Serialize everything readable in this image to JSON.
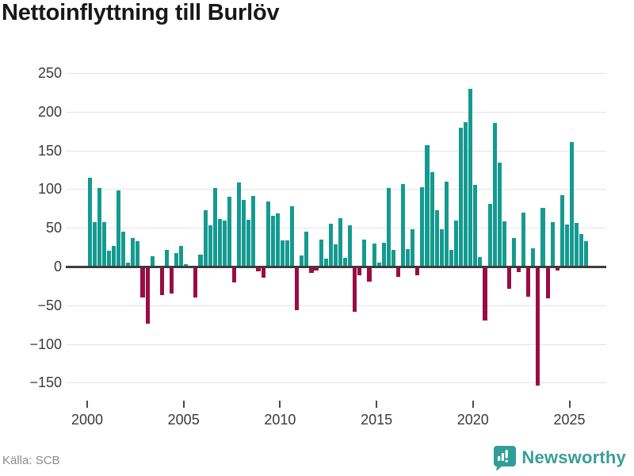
{
  "header": {
    "title": "Nettoinflyttning till Burlöv"
  },
  "footer": {
    "source_label": "Källa: SCB",
    "brand": "Newsworthy"
  },
  "colors": {
    "positive_bar": "#159a90",
    "negative_bar": "#9b0c45",
    "grid": "#e3e3e3",
    "zero_line": "#3d3d3d",
    "axis_text": "#3a3a3a",
    "source_text": "#8b8b8b",
    "brand_teal": "#3a9e99"
  },
  "chart_data": {
    "type": "bar",
    "title": "Nettoinflyttning till Burlöv",
    "x_unit": "quarter",
    "start_period": "2000 Q1",
    "end_period": "2025 Q4",
    "grid": true,
    "x_tick_labels": [
      "2000",
      "2005",
      "2010",
      "2015",
      "2020",
      "2025"
    ],
    "y_ticks": [
      250,
      200,
      150,
      100,
      50,
      0,
      -50,
      -100,
      -150
    ],
    "ylim": [
      -183,
      267
    ],
    "series": [
      {
        "name": "Nettoinflyttning",
        "values": [
          115,
          57,
          101,
          57,
          20,
          27,
          98,
          45,
          5,
          37,
          33,
          -39,
          -73,
          13,
          0,
          -36,
          22,
          -34,
          17,
          27,
          3,
          0,
          -39,
          15,
          73,
          53,
          101,
          61,
          59,
          90,
          -19,
          109,
          86,
          60,
          91,
          -5,
          -13,
          84,
          66,
          69,
          34,
          34,
          78,
          -55,
          14,
          45,
          -7,
          -4,
          35,
          10,
          55,
          29,
          62,
          11,
          53,
          -57,
          -10,
          35,
          -18,
          30,
          5,
          31,
          101,
          21,
          -12,
          107,
          23,
          48,
          -10,
          102,
          157,
          122,
          73,
          48,
          110,
          21,
          59,
          179,
          186,
          229,
          105,
          12,
          -69,
          81,
          185,
          134,
          58,
          -28,
          37,
          -6,
          70,
          -38,
          24,
          -153,
          76,
          -40,
          57,
          -4,
          92,
          54,
          161,
          56,
          42,
          33
        ]
      }
    ]
  }
}
